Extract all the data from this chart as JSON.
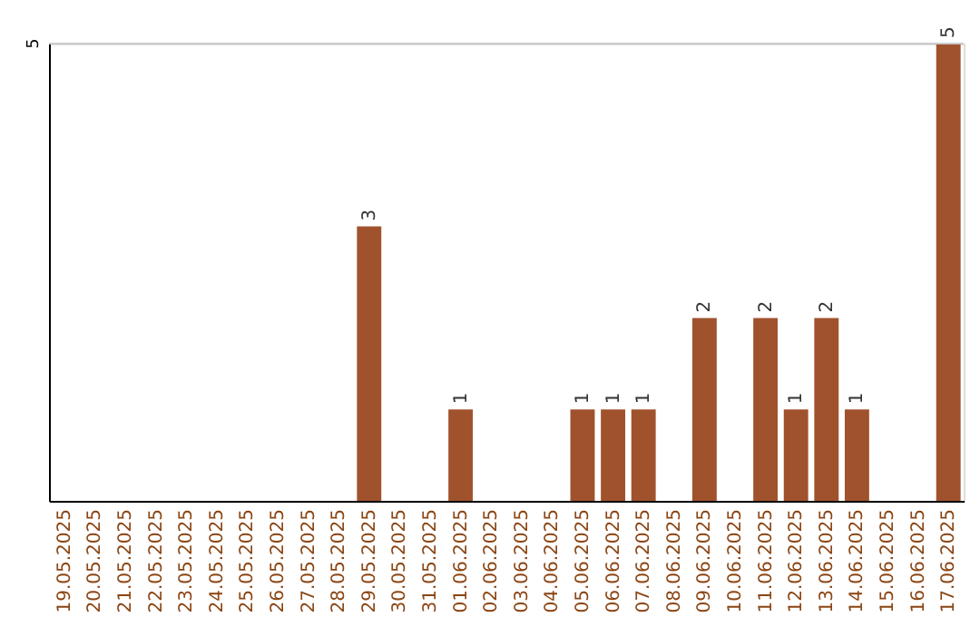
{
  "chart_data": {
    "type": "bar",
    "categories": [
      "19.05.2025",
      "20.05.2025",
      "21.05.2025",
      "22.05.2025",
      "23.05.2025",
      "24.05.2025",
      "25.05.2025",
      "26.05.2025",
      "27.05.2025",
      "28.05.2025",
      "29.05.2025",
      "30.05.2025",
      "31.05.2025",
      "01.06.2025",
      "02.06.2025",
      "03.06.2025",
      "04.06.2025",
      "05.06.2025",
      "06.06.2025",
      "07.06.2025",
      "08.06.2025",
      "09.06.2025",
      "10.06.2025",
      "11.06.2025",
      "12.06.2025",
      "13.06.2025",
      "14.06.2025",
      "15.06.2025",
      "16.06.2025",
      "17.06.2025"
    ],
    "values": [
      0,
      0,
      0,
      0,
      0,
      0,
      0,
      0,
      0,
      0,
      3,
      0,
      0,
      1,
      0,
      0,
      0,
      1,
      1,
      1,
      0,
      2,
      0,
      2,
      1,
      2,
      1,
      0,
      0,
      5
    ],
    "value_labels": [
      null,
      null,
      null,
      null,
      null,
      null,
      null,
      null,
      null,
      null,
      "3",
      null,
      null,
      "1",
      null,
      null,
      null,
      "1",
      "1",
      "1",
      null,
      "2",
      null,
      "2",
      "1",
      "2",
      "1",
      null,
      null,
      "5"
    ],
    "color": "#a0522d",
    "ref_lines": [
      {
        "axis": "y",
        "value": 5,
        "label": "5",
        "color": "#cccccc"
      }
    ]
  }
}
